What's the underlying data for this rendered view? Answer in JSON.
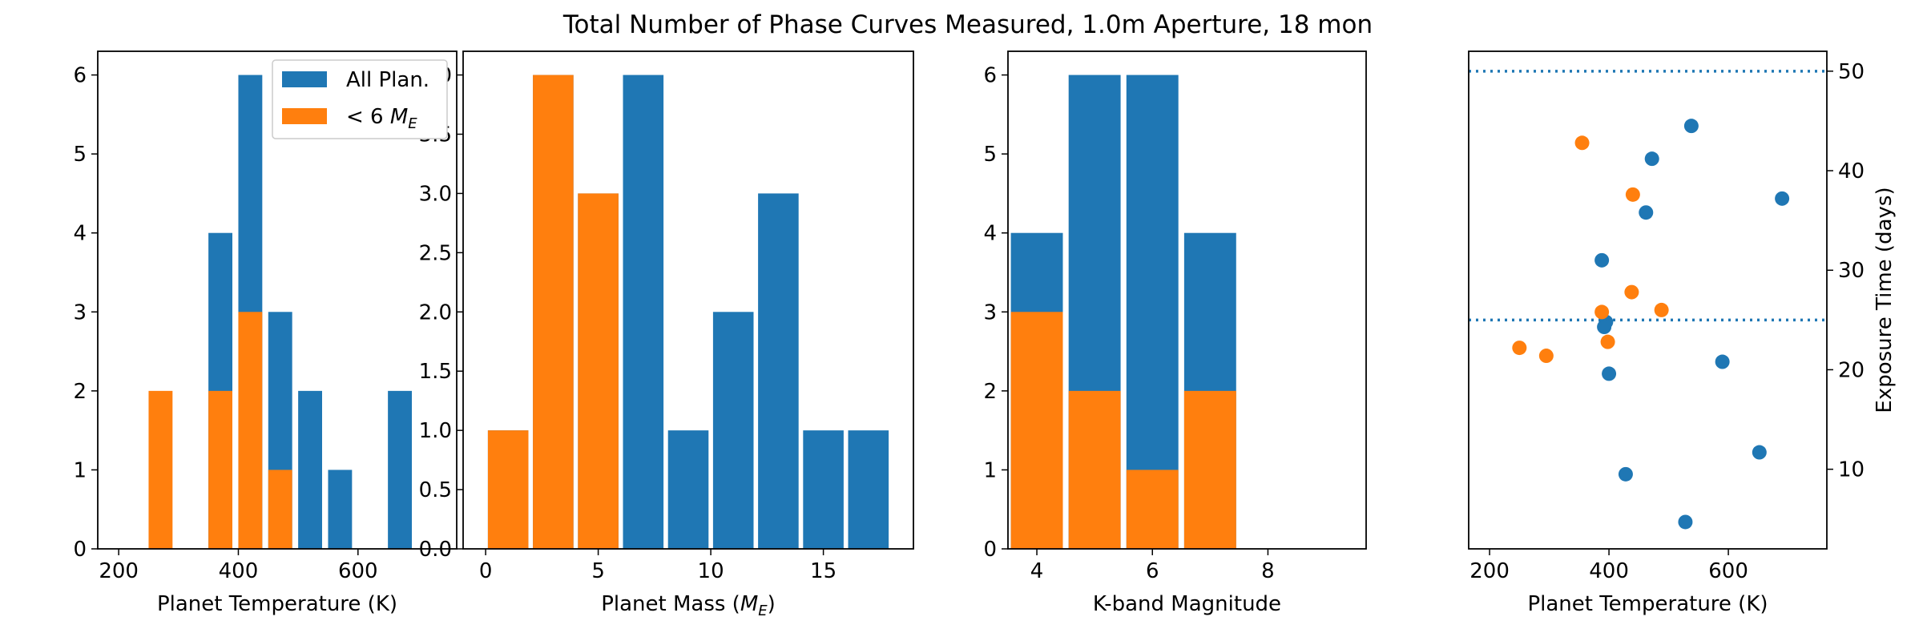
{
  "figure_title": "Total Number of Phase Curves Measured, 1.0m Aperture, 18 mon",
  "colors": {
    "all": "#1f77b4",
    "small": "#ff7f0e"
  },
  "legend": {
    "all": "All Plan.",
    "small_prefix": "< 6 ",
    "small_math": "M",
    "small_sub": "E"
  },
  "chart_data": [
    {
      "type": "bar",
      "xlabel": "Planet Temperature (K)",
      "xlim": [
        165,
        765
      ],
      "ylim": [
        0,
        6.3
      ],
      "xticks": [
        200,
        400,
        600
      ],
      "yticks": [
        0,
        1,
        2,
        3,
        4,
        5,
        6
      ],
      "ytick_labels": [
        "0",
        "1",
        "2",
        "3",
        "4",
        "5",
        "6"
      ],
      "bar_width": 40,
      "bin_centers": [
        270,
        370,
        420,
        470,
        520,
        570,
        670
      ],
      "series": [
        {
          "name": "All Plan.",
          "values": [
            0,
            4,
            6,
            3,
            2,
            1,
            2
          ]
        },
        {
          "name": "< 6 M_E",
          "values": [
            2,
            2,
            3,
            1,
            0,
            0,
            0
          ]
        }
      ],
      "legend_position": "top-right"
    },
    {
      "type": "bar",
      "xlabel_prefix": "Planet Mass (",
      "xlabel_math": "M",
      "xlabel_sub": "E",
      "xlabel_suffix": ")",
      "xlim": [
        -1,
        19
      ],
      "ylim": [
        0,
        4.2
      ],
      "xticks": [
        0,
        5,
        10,
        15
      ],
      "yticks": [
        0,
        0.5,
        1,
        1.5,
        2,
        2.5,
        3,
        3.5,
        4
      ],
      "ytick_labels": [
        "0.0",
        "0.5",
        "1.0",
        "1.5",
        "2.0",
        "2.5",
        "3.0",
        "3.5",
        "4.0"
      ],
      "bar_width": 1.8,
      "bin_centers": [
        1,
        3,
        5,
        7,
        9,
        11,
        13,
        15,
        17
      ],
      "series": [
        {
          "name": "All Plan.",
          "values": [
            1,
            4,
            3,
            4,
            1,
            2,
            3,
            1,
            1
          ]
        },
        {
          "name": "< 6 M_E",
          "values": [
            1,
            4,
            3,
            0,
            0,
            0,
            0,
            0,
            0
          ]
        }
      ]
    },
    {
      "type": "bar",
      "xlabel": "K-band Magnitude",
      "xlim": [
        3.5,
        9.7
      ],
      "ylim": [
        0,
        6.3
      ],
      "xticks": [
        4,
        6,
        8
      ],
      "yticks": [
        0,
        1,
        2,
        3,
        4,
        5,
        6
      ],
      "ytick_labels": [
        "0",
        "1",
        "2",
        "3",
        "4",
        "5",
        "6"
      ],
      "bar_width": 0.9,
      "bin_centers": [
        4,
        5,
        6,
        7
      ],
      "series": [
        {
          "name": "All Plan.",
          "values": [
            4,
            6,
            6,
            4
          ]
        },
        {
          "name": "< 6 M_E",
          "values": [
            3,
            2,
            1,
            2
          ]
        }
      ]
    },
    {
      "type": "scatter",
      "xlabel": "Planet Temperature (K)",
      "ylabel": "Exposure Time (days)",
      "xlim": [
        165,
        765
      ],
      "ylim": [
        2,
        52
      ],
      "xticks": [
        200,
        400,
        600
      ],
      "yticks": [
        10,
        20,
        30,
        40,
        50
      ],
      "hlines": [
        50,
        25
      ],
      "series": [
        {
          "name": "All Plan.",
          "points": [
            [
              538,
              44.5
            ],
            [
              472,
              41.2
            ],
            [
              690,
              37.2
            ],
            [
              462,
              35.8
            ],
            [
              388,
              31.0
            ],
            [
              395,
              24.8
            ],
            [
              392,
              24.3
            ],
            [
              590,
              20.8
            ],
            [
              400,
              19.6
            ],
            [
              652,
              11.7
            ],
            [
              428,
              9.5
            ],
            [
              528,
              4.7
            ]
          ]
        },
        {
          "name": "< 6 M_E",
          "points": [
            [
              355,
              42.8
            ],
            [
              440,
              37.6
            ],
            [
              438,
              27.8
            ],
            [
              488,
              26.0
            ],
            [
              388,
              25.8
            ],
            [
              398,
              22.8
            ],
            [
              250,
              22.2
            ],
            [
              295,
              21.4
            ]
          ]
        }
      ]
    }
  ]
}
